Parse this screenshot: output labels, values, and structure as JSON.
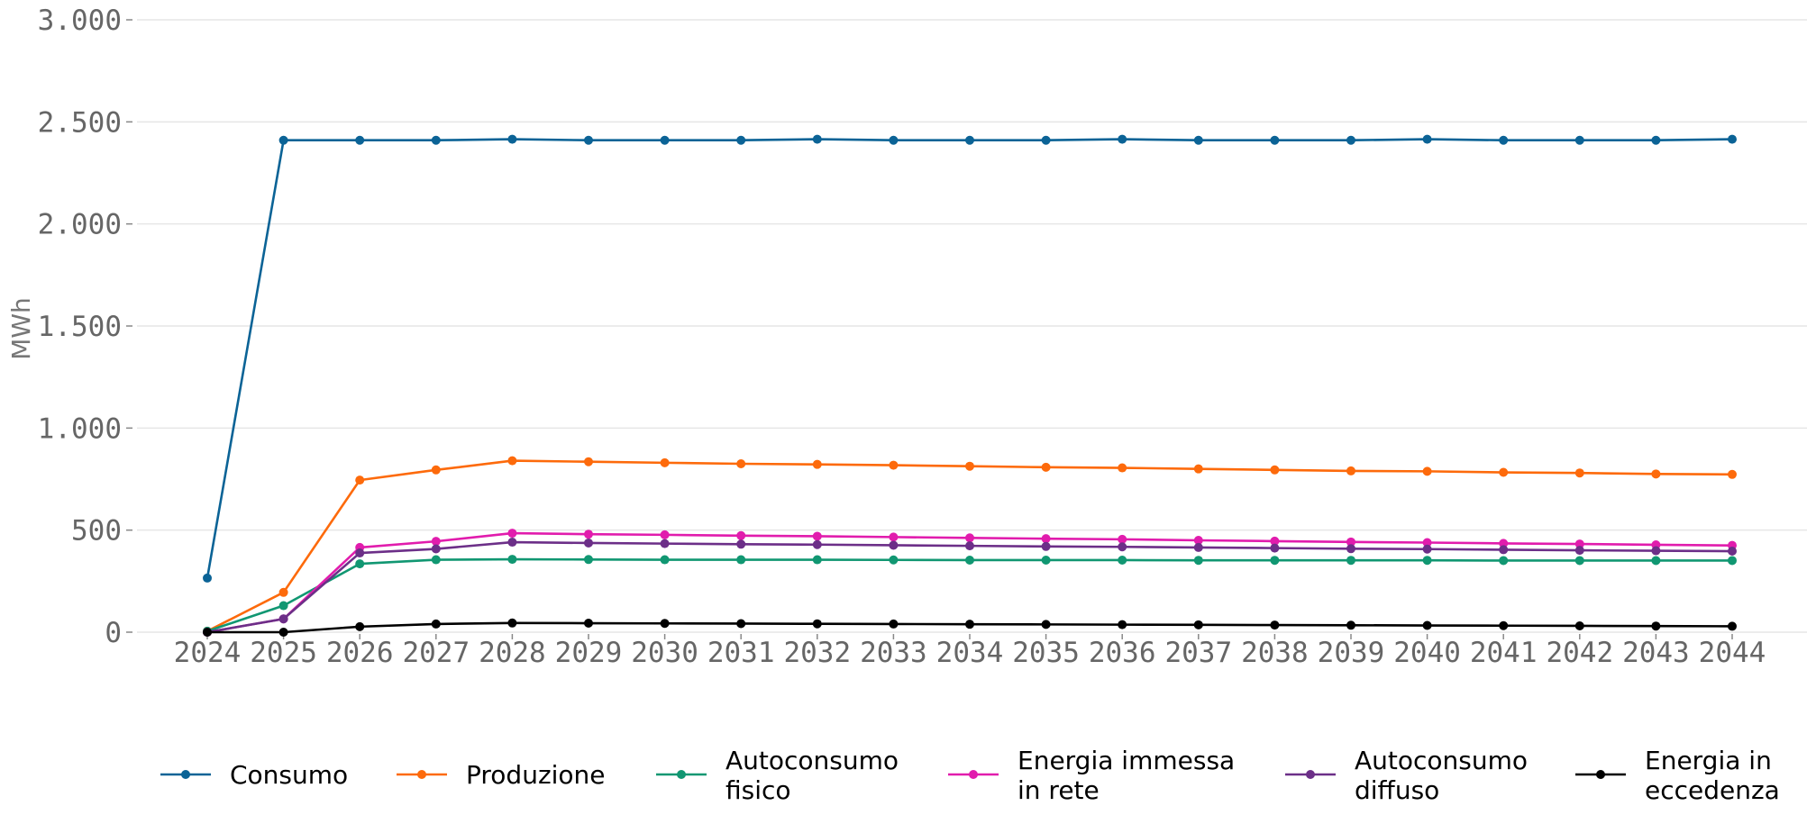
{
  "chart_data": {
    "type": "line",
    "ylabel": "MWh",
    "xlabel": "",
    "ylim": [
      0,
      3000
    ],
    "y_ticks": [
      0,
      500,
      1000,
      1500,
      2000,
      2500,
      3000
    ],
    "y_tick_labels": [
      "0",
      "500",
      "1.000",
      "1.500",
      "2.000",
      "2.500",
      "3.000"
    ],
    "grid": "horizontal",
    "legend_position": "bottom",
    "x": [
      "2024",
      "2025",
      "2026",
      "2027",
      "2028",
      "2029",
      "2030",
      "2031",
      "2032",
      "2033",
      "2034",
      "2035",
      "2036",
      "2037",
      "2038",
      "2039",
      "2040",
      "2041",
      "2042",
      "2043",
      "2044"
    ],
    "series": [
      {
        "name": "Consumo",
        "label_lines": [
          "Consumo"
        ],
        "color": "#0b6396",
        "values": [
          265,
          2410,
          2410,
          2410,
          2415,
          2410,
          2410,
          2410,
          2415,
          2410,
          2410,
          2410,
          2415,
          2410,
          2410,
          2410,
          2415,
          2410,
          2410,
          2410,
          2415
        ]
      },
      {
        "name": "Produzione",
        "label_lines": [
          "Produzione"
        ],
        "color": "#fd6a0b",
        "values": [
          5,
          195,
          745,
          795,
          840,
          835,
          830,
          825,
          822,
          818,
          813,
          808,
          805,
          800,
          795,
          790,
          788,
          783,
          780,
          775,
          773
        ]
      },
      {
        "name": "Autoconsumo fisico",
        "label_lines": [
          "Autoconsumo",
          "fisico"
        ],
        "color": "#119772",
        "values": [
          5,
          130,
          335,
          355,
          357,
          356,
          355,
          355,
          355,
          354,
          353,
          353,
          353,
          352,
          352,
          352,
          352,
          351,
          351,
          351,
          351
        ]
      },
      {
        "name": "Energia immessa in rete",
        "label_lines": [
          "Energia immessa",
          "in rete"
        ],
        "color": "#e11cad",
        "values": [
          0,
          65,
          415,
          445,
          485,
          480,
          477,
          473,
          470,
          466,
          462,
          458,
          455,
          450,
          446,
          442,
          439,
          435,
          432,
          428,
          425
        ]
      },
      {
        "name": "Autoconsumo diffuso",
        "label_lines": [
          "Autoconsumo",
          "diffuso"
        ],
        "color": "#6c2f88",
        "values": [
          0,
          65,
          388,
          408,
          441,
          437,
          434,
          431,
          429,
          426,
          423,
          420,
          418,
          415,
          412,
          409,
          407,
          404,
          401,
          399,
          397
        ]
      },
      {
        "name": "Energia in eccedenza",
        "label_lines": [
          "Energia in",
          "eccedenza"
        ],
        "color": "#000000",
        "values": [
          0,
          0,
          27,
          40,
          45,
          44,
          43,
          42,
          41,
          40,
          39,
          38,
          37,
          36,
          35,
          34,
          33,
          32,
          31,
          30,
          29
        ]
      }
    ]
  }
}
